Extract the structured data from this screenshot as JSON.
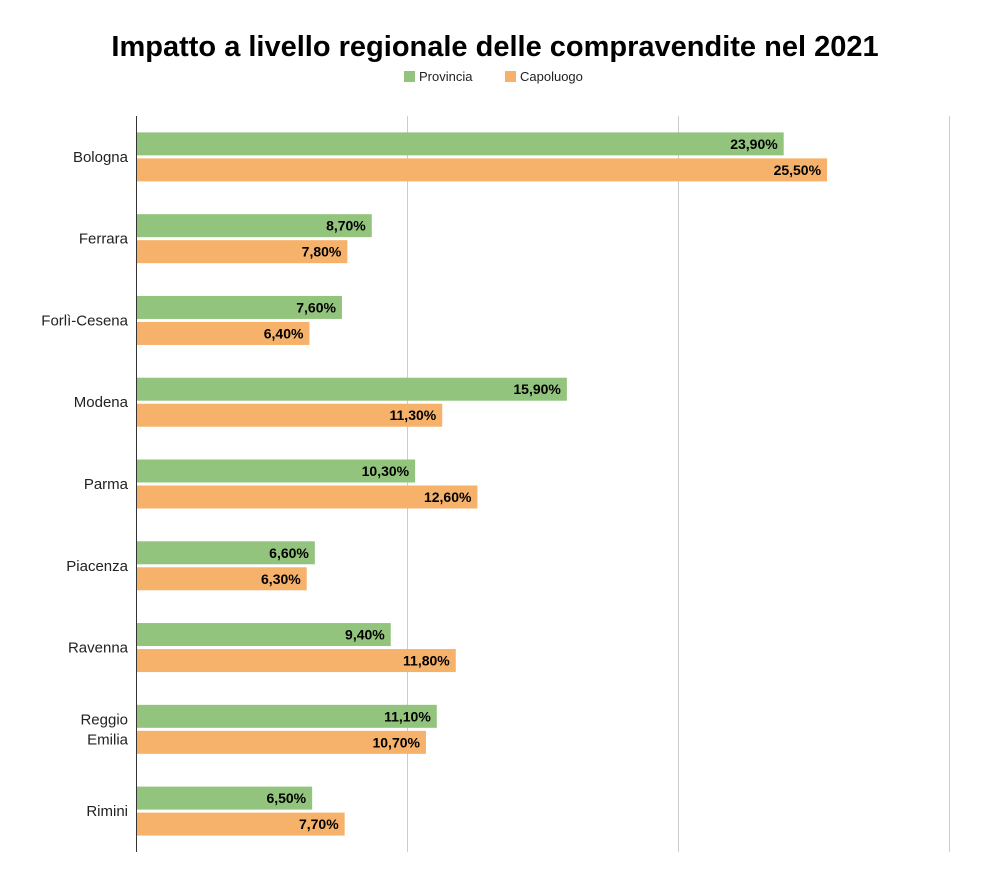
{
  "chart_data": {
    "type": "bar",
    "orientation": "horizontal",
    "title": "Impatto a livello regionale delle compravendite nel 2021",
    "categories": [
      [
        "Bologna"
      ],
      [
        "Ferrara"
      ],
      [
        "Forlì-Cesena"
      ],
      [
        "Modena"
      ],
      [
        "Parma"
      ],
      [
        "Piacenza"
      ],
      [
        "Ravenna"
      ],
      [
        "Reggio",
        "Emilia"
      ],
      [
        "Rimini"
      ]
    ],
    "series": [
      {
        "name": "Provincia",
        "color": "#93c47d",
        "values": [
          23.9,
          8.7,
          7.6,
          15.9,
          10.3,
          6.6,
          9.4,
          11.1,
          6.5
        ],
        "labels": [
          "23,90%",
          "8,70%",
          "7,60%",
          "15,90%",
          "10,30%",
          "6,60%",
          "9,40%",
          "11,10%",
          "6,50%"
        ]
      },
      {
        "name": "Capoluogo",
        "color": "#f6b26b",
        "values": [
          25.5,
          7.8,
          6.4,
          11.3,
          12.6,
          6.3,
          11.8,
          10.7,
          7.7
        ],
        "labels": [
          "25,50%",
          "7,80%",
          "6,40%",
          "11,30%",
          "12,60%",
          "6,30%",
          "11,80%",
          "10,70%",
          "7,70%"
        ]
      }
    ],
    "xlim": [
      0,
      30
    ],
    "gridlines_x": [
      10,
      20,
      30
    ],
    "grid": true,
    "legend_position": "top",
    "xlabel": "",
    "ylabel": ""
  }
}
